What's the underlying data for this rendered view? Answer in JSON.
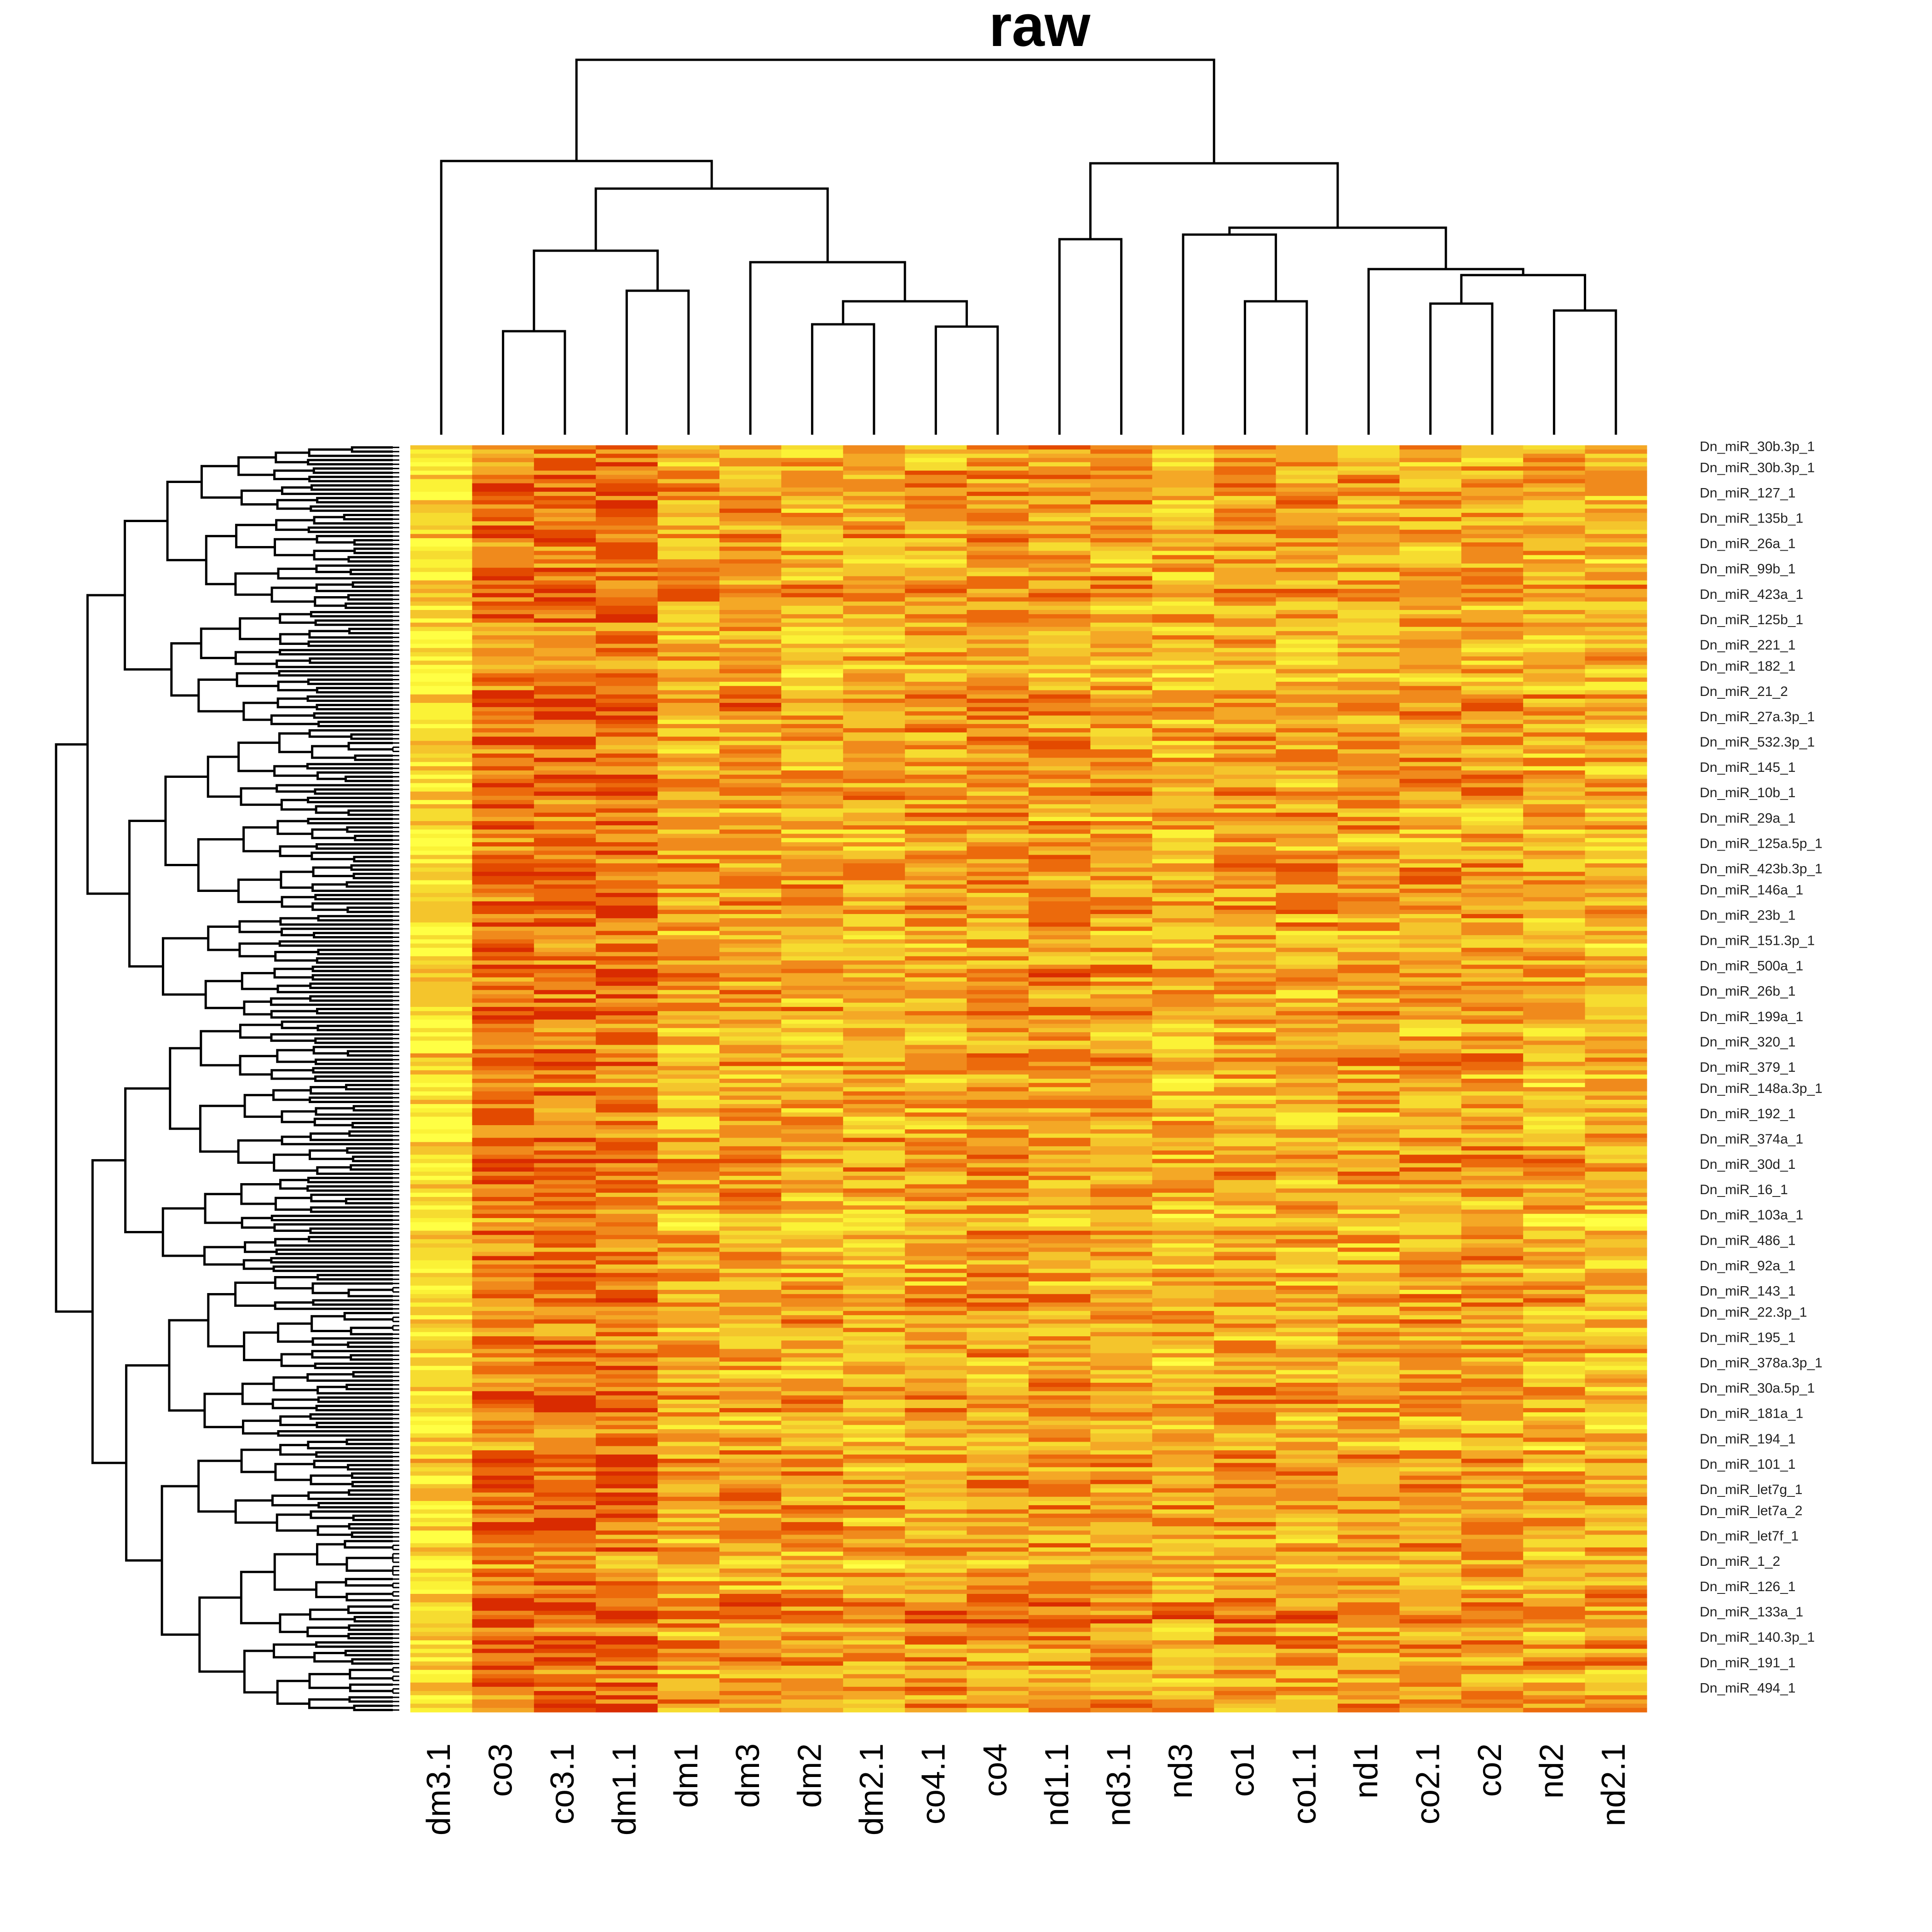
{
  "chart_data": {
    "type": "heatmap",
    "title": "raw",
    "columns": [
      "dm3.1",
      "co3",
      "co3.1",
      "dm1.1",
      "dm1",
      "dm3",
      "dm2",
      "dm2.1",
      "co4.1",
      "co4",
      "nd1.1",
      "nd3.1",
      "nd3",
      "co1",
      "co1.1",
      "nd1",
      "co2.1",
      "co2",
      "nd2",
      "nd2.1"
    ],
    "row_count": 300,
    "color_scale": [
      "#d92b00",
      "#e34a00",
      "#ec6a0c",
      "#f08a1c",
      "#f4a826",
      "#f4c52c",
      "#f6dc30",
      "#fbf236",
      "#ffff44"
    ],
    "value_range": [
      0,
      1
    ],
    "row_dendrogram_position": "left",
    "column_dendrogram_position": "top",
    "row_labels_visible": [
      "Dn_miR_30b.3p_1",
      "Dn_miR_30b.3p_1",
      "Dn_miR_127_1",
      "Dn_miR_135b_1",
      "Dn_miR_26a_1",
      "Dn_miR_99b_1",
      "Dn_miR_423a_1",
      "Dn_miR_125b_1",
      "Dn_miR_221_1",
      "Dn_miR_182_1",
      "Dn_miR_21_2",
      "Dn_miR_27a.3p_1",
      "Dn_miR_532.3p_1",
      "Dn_miR_145_1",
      "Dn_miR_10b_1",
      "Dn_miR_29a_1",
      "Dn_miR_125a.5p_1",
      "Dn_miR_423b.3p_1",
      "Dn_miR_146a_1",
      "Dn_miR_23b_1",
      "Dn_miR_151.3p_1",
      "Dn_miR_500a_1",
      "Dn_miR_26b_1",
      "Dn_miR_199a_1",
      "Dn_miR_320_1",
      "Dn_miR_379_1",
      "Dn_miR_148a.3p_1",
      "Dn_miR_192_1",
      "Dn_miR_374a_1",
      "Dn_miR_30d_1",
      "Dn_miR_16_1",
      "Dn_miR_103a_1",
      "Dn_miR_486_1",
      "Dn_miR_92a_1",
      "Dn_miR_143_1",
      "Dn_miR_22.3p_1",
      "Dn_miR_195_1",
      "Dn_miR_378a.3p_1",
      "Dn_miR_30a.5p_1",
      "Dn_miR_181a_1",
      "Dn_miR_194_1",
      "Dn_miR_101_1",
      "Dn_miR_let7g_1",
      "Dn_miR_let7a_2",
      "Dn_miR_let7f_1",
      "Dn_miR_1_2",
      "Dn_miR_126_1",
      "Dn_miR_133a_1",
      "Dn_miR_140.3p_1",
      "Dn_miR_191_1",
      "Dn_miR_494_1"
    ]
  }
}
